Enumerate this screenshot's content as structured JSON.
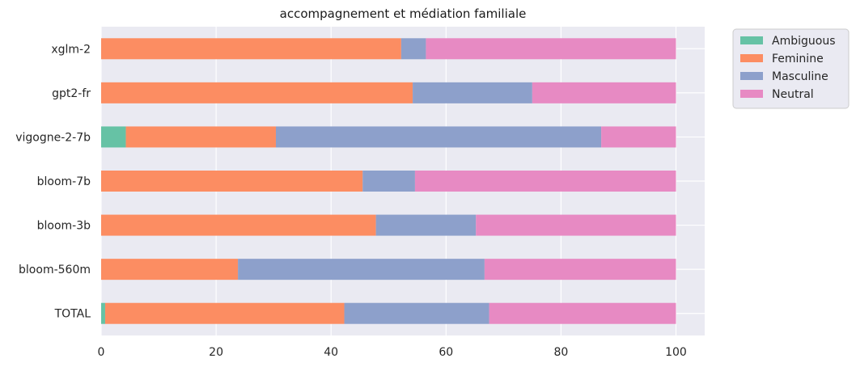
{
  "chart_data": {
    "type": "bar",
    "orientation": "horizontal",
    "stacked": true,
    "title": "accompagnement et médiation familiale",
    "xlabel": "",
    "ylabel": "",
    "xlim": [
      0,
      105
    ],
    "xticks": [
      0,
      20,
      40,
      60,
      80,
      100
    ],
    "grid": true,
    "legend_position": "outside-top-right",
    "categories": [
      "xglm-2",
      "gpt2-fr",
      "vigogne-2-7b",
      "bloom-7b",
      "bloom-3b",
      "bloom-560m",
      "TOTAL"
    ],
    "series": [
      {
        "name": "Ambiguous",
        "color": "#66c2a5",
        "values": [
          0,
          0,
          4.3,
          0,
          0,
          0,
          0.7
        ]
      },
      {
        "name": "Feminine",
        "color": "#fc8d62",
        "values": [
          52.2,
          54.2,
          26.1,
          45.5,
          47.8,
          23.8,
          41.6
        ]
      },
      {
        "name": "Masculine",
        "color": "#8da0cb",
        "values": [
          4.3,
          20.8,
          56.6,
          9.1,
          17.4,
          42.9,
          25.2
        ]
      },
      {
        "name": "Neutral",
        "color": "#e78ac3",
        "values": [
          43.5,
          25.0,
          13.0,
          45.4,
          34.8,
          33.3,
          32.5
        ]
      }
    ]
  }
}
